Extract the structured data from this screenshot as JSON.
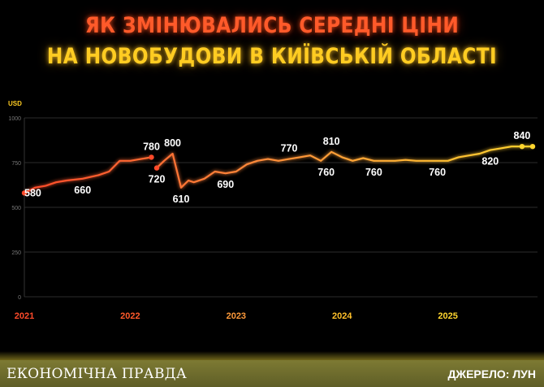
{
  "title_line1": "ЯК ЗМІНЮВАЛИСЬ СЕРЕДНІ ЦІНИ",
  "title_line2": "НА НОВОБУДОВИ В КИЇВСЬКІЙ ОБЛАСТІ",
  "brand": "ЕКОНОМІЧНА ПРАВДА",
  "source": "ДЖЕРЕЛО: ЛУН",
  "colors": {
    "red": "#ff4a2a",
    "orange": "#ff8a3a",
    "yellow": "#ffd62e",
    "footer": "#6b6a2c"
  },
  "chart_data": {
    "type": "line",
    "ylabel": "USD",
    "ylim": [
      0,
      1000
    ],
    "yticks": [
      0,
      250,
      500,
      750,
      1000
    ],
    "grid": true,
    "year_labels": [
      "2021",
      "2022",
      "2023",
      "2024",
      "2025"
    ],
    "year_positions": [
      2021.0,
      2022.0,
      2023.0,
      2024.0,
      2025.0
    ],
    "segments": [
      {
        "x": [
          2021.0,
          2021.1,
          2021.2,
          2021.3,
          2021.4,
          2021.55,
          2021.7,
          2021.8,
          2021.9,
          2022.0,
          2022.1,
          2022.2
        ],
        "y": [
          580,
          610,
          620,
          640,
          650,
          660,
          680,
          700,
          760,
          760,
          770,
          780
        ]
      },
      {
        "x": [
          2022.25,
          2022.32,
          2022.4,
          2022.48,
          2022.55,
          2022.6,
          2022.7,
          2022.8,
          2022.9,
          2023.0,
          2023.1,
          2023.2,
          2023.3,
          2023.4,
          2023.5,
          2023.6,
          2023.7,
          2023.8,
          2023.9,
          2024.0,
          2024.05,
          2024.1,
          2024.2,
          2024.3,
          2024.4,
          2024.5,
          2024.6,
          2024.7,
          2024.8,
          2024.9,
          2025.0,
          2025.1,
          2025.2,
          2025.3,
          2025.4,
          2025.5,
          2025.6,
          2025.7,
          2025.8
        ],
        "y": [
          720,
          760,
          800,
          610,
          650,
          640,
          660,
          700,
          690,
          700,
          740,
          760,
          770,
          760,
          770,
          780,
          790,
          760,
          810,
          780,
          770,
          760,
          775,
          760,
          760,
          760,
          765,
          760,
          760,
          760,
          760,
          780,
          790,
          800,
          820,
          830,
          840,
          840,
          840
        ]
      }
    ],
    "endpoints": [
      {
        "x": 2021.0,
        "y": 580
      },
      {
        "x": 2022.2,
        "y": 780
      },
      {
        "x": 2022.25,
        "y": 720
      },
      {
        "x": 2025.7,
        "y": 840
      },
      {
        "x": 2025.8,
        "y": 840
      }
    ],
    "annotations": [
      {
        "label": "580",
        "x": 2021.0,
        "y": 580,
        "pos": "right"
      },
      {
        "label": "660",
        "x": 2021.55,
        "y": 660,
        "pos": "below"
      },
      {
        "label": "780",
        "x": 2022.2,
        "y": 780,
        "pos": "above"
      },
      {
        "label": "720",
        "x": 2022.25,
        "y": 720,
        "pos": "below"
      },
      {
        "label": "800",
        "x": 2022.4,
        "y": 800,
        "pos": "above"
      },
      {
        "label": "610",
        "x": 2022.48,
        "y": 610,
        "pos": "below"
      },
      {
        "label": "690",
        "x": 2022.9,
        "y": 690,
        "pos": "below"
      },
      {
        "label": "770",
        "x": 2023.5,
        "y": 770,
        "pos": "above"
      },
      {
        "label": "810",
        "x": 2023.9,
        "y": 810,
        "pos": "above"
      },
      {
        "label": "760",
        "x": 2023.85,
        "y": 760,
        "pos": "below"
      },
      {
        "label": "760",
        "x": 2024.3,
        "y": 760,
        "pos": "below"
      },
      {
        "label": "760",
        "x": 2024.9,
        "y": 760,
        "pos": "below"
      },
      {
        "label": "820",
        "x": 2025.4,
        "y": 820,
        "pos": "below"
      },
      {
        "label": "840",
        "x": 2025.7,
        "y": 840,
        "pos": "above"
      }
    ]
  }
}
